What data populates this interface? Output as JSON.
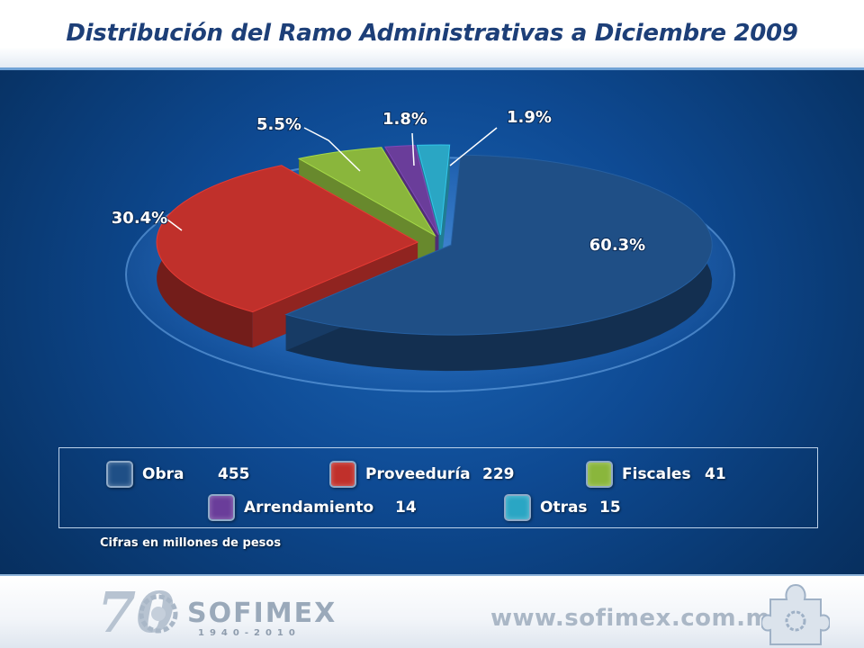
{
  "header": {
    "title": "Distribución del Ramo Administrativas a Diciembre 2009"
  },
  "chart_data": {
    "type": "pie",
    "categories": [
      "Obra",
      "Proveeduría",
      "Fiscales",
      "Arrendamiento",
      "Otras"
    ],
    "values": [
      455,
      229,
      41,
      14,
      15
    ],
    "percent_labels": [
      "60.3%",
      "30.4%",
      "5.5%",
      "1.8%",
      "1.9%"
    ],
    "colors": [
      "#1f4f86",
      "#c0302b",
      "#8ab63c",
      "#6a3d9a",
      "#2aa6c4"
    ],
    "title": "Distribución del Ramo Administrativas a Diciembre 2009",
    "legend_position": "bottom"
  },
  "legend": {
    "items": [
      {
        "label": "Obra",
        "value": "455",
        "icon": "blue-swatch-icon"
      },
      {
        "label": "Proveeduría",
        "value": "229",
        "icon": "red-swatch-icon"
      },
      {
        "label": "Fiscales",
        "value": "41",
        "icon": "green-swatch-icon"
      },
      {
        "label": "Arrendamiento",
        "value": "14",
        "icon": "purple-swatch-icon"
      },
      {
        "label": "Otras",
        "value": "15",
        "icon": "teal-swatch-icon"
      }
    ]
  },
  "footnote": "Cifras en millones de pesos",
  "footer": {
    "logo_number": "70",
    "logo_brand": "SOFIMEX",
    "logo_years": "1940-2010",
    "website": "www.sofimex.com.mx"
  }
}
